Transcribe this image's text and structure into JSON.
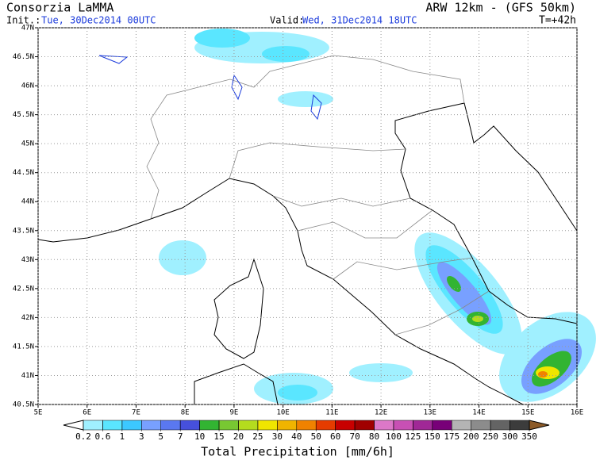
{
  "header": {
    "title": "Consorzia LaMMA",
    "model": "ARW 12km - (GFS 50km)",
    "init_label": "Init.:",
    "init": "Tue, 30Dec2014 00UTC",
    "valid_label": "Valid:",
    "valid": "Wed, 31Dec2014 18UTC",
    "lead": "T=+42h"
  },
  "map": {
    "xlim": [
      5,
      16
    ],
    "ylim": [
      40.5,
      47
    ],
    "xticks": [
      {
        "value": 5,
        "label": "5E"
      },
      {
        "value": 6,
        "label": "6E"
      },
      {
        "value": 7,
        "label": "7E"
      },
      {
        "value": 8,
        "label": "8E"
      },
      {
        "value": 9,
        "label": "9E"
      },
      {
        "value": 10,
        "label": "10E"
      },
      {
        "value": 11,
        "label": "11E"
      },
      {
        "value": 12,
        "label": "12E"
      },
      {
        "value": 13,
        "label": "13E"
      },
      {
        "value": 14,
        "label": "14E"
      },
      {
        "value": 15,
        "label": "15E"
      },
      {
        "value": 16,
        "label": "16E"
      }
    ],
    "yticks": [
      {
        "value": 40.5,
        "label": "40.5N"
      },
      {
        "value": 41,
        "label": "41N"
      },
      {
        "value": 41.5,
        "label": "41.5N"
      },
      {
        "value": 42,
        "label": "42N"
      },
      {
        "value": 42.5,
        "label": "42.5N"
      },
      {
        "value": 43,
        "label": "43N"
      },
      {
        "value": 43.5,
        "label": "43.5N"
      },
      {
        "value": 44,
        "label": "44N"
      },
      {
        "value": 44.5,
        "label": "44.5N"
      },
      {
        "value": 45,
        "label": "45N"
      },
      {
        "value": 45.5,
        "label": "45.5N"
      },
      {
        "value": 46,
        "label": "46N"
      },
      {
        "value": 46.5,
        "label": "46.5N"
      },
      {
        "value": 47,
        "label": "47N"
      }
    ],
    "grid": true
  },
  "colorbar": {
    "title": "Total Precipitation [mm/6h]",
    "levels": [
      0.2,
      0.6,
      1,
      3,
      5,
      7,
      10,
      15,
      20,
      25,
      30,
      40,
      50,
      60,
      70,
      80,
      100,
      125,
      150,
      175,
      200,
      250,
      300,
      350
    ],
    "colors": [
      "#ffffff",
      "#a0f0ff",
      "#5ae6ff",
      "#3cc8ff",
      "#78a0ff",
      "#5a78f0",
      "#4650dc",
      "#32b432",
      "#78c832",
      "#b4dc1e",
      "#f0e600",
      "#f0b400",
      "#f08200",
      "#e63c00",
      "#c80000",
      "#a00000",
      "#dc78c8",
      "#c850b4",
      "#a02896",
      "#780078",
      "#b4b4b4",
      "#8c8c8c",
      "#646464",
      "#3c3c3c",
      "#8c5a28"
    ]
  }
}
